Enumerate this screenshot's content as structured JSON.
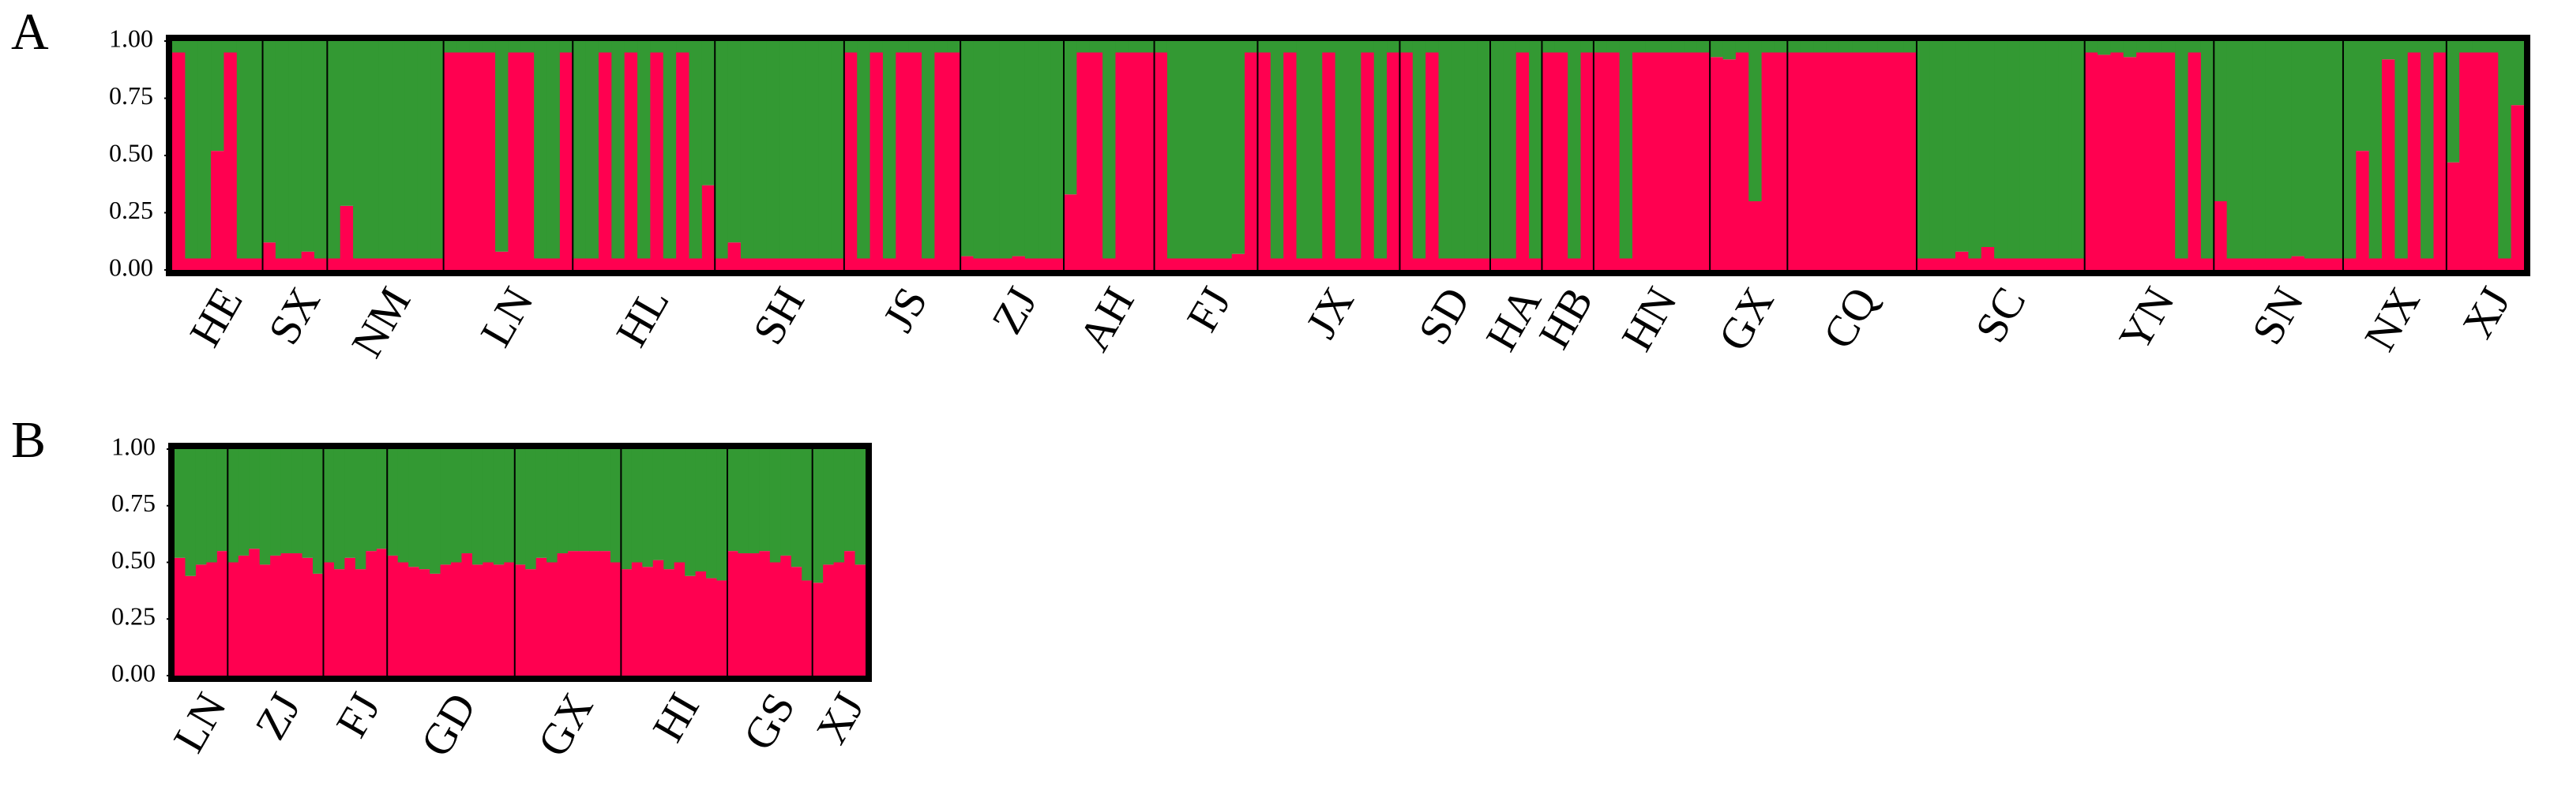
{
  "chart_data": [
    {
      "type": "bar",
      "stacked": true,
      "label": "A",
      "categories": [
        "HE",
        "SX",
        "NM",
        "LN",
        "HL",
        "SH",
        "JS",
        "ZJ",
        "AH",
        "FJ",
        "JX",
        "SD",
        "HA",
        "HB",
        "HN",
        "GX",
        "CQ",
        "SC",
        "YN",
        "SN",
        "NX",
        "XJ"
      ],
      "ylim": [
        0,
        1
      ],
      "yticks": [
        {
          "value": 0,
          "label": "0.00"
        },
        {
          "value": 0.25,
          "label": "0.25"
        },
        {
          "value": 0.5,
          "label": "0.50"
        },
        {
          "value": 0.75,
          "label": "0.75"
        },
        {
          "value": 1,
          "label": "1.00"
        }
      ],
      "series": [
        {
          "color": "#ff0050",
          "values": [
            [
              0.95,
              0.05,
              0.05,
              0.52,
              0.95,
              0.05,
              0.05
            ],
            [
              0.12,
              0.05,
              0.05,
              0.08,
              0.05
            ],
            [
              0.05,
              0.28,
              0.05,
              0.05,
              0.05,
              0.05,
              0.05,
              0.05,
              0.05
            ],
            [
              0.95,
              0.95,
              0.95,
              0.95,
              0.08,
              0.95,
              0.95,
              0.05,
              0.05,
              0.95
            ],
            [
              0.05,
              0.05,
              0.95,
              0.05,
              0.95,
              0.05,
              0.95,
              0.05,
              0.95,
              0.05,
              0.37
            ],
            [
              0.05,
              0.12,
              0.05,
              0.05,
              0.05,
              0.05,
              0.05,
              0.05,
              0.05,
              0.05
            ],
            [
              0.95,
              0.05,
              0.95,
              0.05,
              0.95,
              0.95,
              0.05,
              0.95,
              0.95
            ],
            [
              0.06,
              0.05,
              0.05,
              0.05,
              0.06,
              0.05,
              0.05,
              0.05
            ],
            [
              0.33,
              0.95,
              0.95,
              0.05,
              0.95,
              0.95,
              0.95
            ],
            [
              0.95,
              0.05,
              0.05,
              0.05,
              0.05,
              0.05,
              0.07,
              0.95
            ],
            [
              0.95,
              0.05,
              0.95,
              0.05,
              0.05,
              0.95,
              0.05,
              0.05,
              0.95,
              0.05,
              0.95
            ],
            [
              0.95,
              0.05,
              0.95,
              0.05,
              0.05,
              0.05,
              0.05
            ],
            [
              0.05,
              0.05,
              0.95,
              0.05
            ],
            [
              0.95,
              0.95,
              0.05,
              0.95
            ],
            [
              0.95,
              0.95,
              0.05,
              0.95,
              0.95,
              0.95,
              0.95,
              0.95,
              0.95
            ],
            [
              0.93,
              0.92,
              0.95,
              0.3,
              0.95,
              0.95
            ],
            [
              0.95,
              0.95,
              0.95,
              0.95,
              0.95,
              0.95,
              0.95,
              0.95,
              0.95,
              0.95
            ],
            [
              0.05,
              0.05,
              0.05,
              0.08,
              0.05,
              0.1,
              0.05,
              0.05,
              0.05,
              0.05,
              0.05,
              0.05,
              0.05
            ],
            [
              0.95,
              0.94,
              0.95,
              0.93,
              0.95,
              0.95,
              0.95,
              0.05,
              0.95,
              0.05
            ],
            [
              0.3,
              0.05,
              0.05,
              0.05,
              0.05,
              0.05,
              0.06,
              0.05,
              0.05,
              0.05
            ],
            [
              0.05,
              0.52,
              0.05,
              0.92,
              0.05,
              0.95,
              0.05,
              0.95
            ],
            [
              0.47,
              0.95,
              0.95,
              0.95,
              0.05,
              0.72
            ]
          ]
        },
        {
          "color": "#339933",
          "values": [
            [
              0.05,
              0.95,
              0.95,
              0.48,
              0.05,
              0.95,
              0.95
            ],
            [
              0.88,
              0.95,
              0.95,
              0.92,
              0.95
            ],
            [
              0.95,
              0.72,
              0.95,
              0.95,
              0.95,
              0.95,
              0.95,
              0.95,
              0.95
            ],
            [
              0.05,
              0.05,
              0.05,
              0.05,
              0.92,
              0.05,
              0.05,
              0.95,
              0.95,
              0.05
            ],
            [
              0.95,
              0.95,
              0.05,
              0.95,
              0.05,
              0.95,
              0.05,
              0.95,
              0.05,
              0.95,
              0.63
            ],
            [
              0.95,
              0.88,
              0.95,
              0.95,
              0.95,
              0.95,
              0.95,
              0.95,
              0.95,
              0.95
            ],
            [
              0.05,
              0.95,
              0.05,
              0.95,
              0.05,
              0.05,
              0.95,
              0.05,
              0.05
            ],
            [
              0.94,
              0.95,
              0.95,
              0.95,
              0.94,
              0.95,
              0.95,
              0.95
            ],
            [
              0.67,
              0.05,
              0.05,
              0.95,
              0.05,
              0.05,
              0.05
            ],
            [
              0.05,
              0.95,
              0.95,
              0.95,
              0.95,
              0.95,
              0.93,
              0.05
            ],
            [
              0.05,
              0.95,
              0.05,
              0.95,
              0.95,
              0.05,
              0.95,
              0.95,
              0.05,
              0.95,
              0.05
            ],
            [
              0.05,
              0.95,
              0.05,
              0.95,
              0.95,
              0.95,
              0.95
            ],
            [
              0.95,
              0.95,
              0.05,
              0.95
            ],
            [
              0.05,
              0.05,
              0.95,
              0.05
            ],
            [
              0.05,
              0.05,
              0.95,
              0.05,
              0.05,
              0.05,
              0.05,
              0.05,
              0.05
            ],
            [
              0.07,
              0.08,
              0.05,
              0.7,
              0.05,
              0.05
            ],
            [
              0.05,
              0.05,
              0.05,
              0.05,
              0.05,
              0.05,
              0.05,
              0.05,
              0.05,
              0.05
            ],
            [
              0.95,
              0.95,
              0.95,
              0.92,
              0.95,
              0.9,
              0.95,
              0.95,
              0.95,
              0.95,
              0.95,
              0.95,
              0.95
            ],
            [
              0.05,
              0.06,
              0.05,
              0.07,
              0.05,
              0.05,
              0.05,
              0.95,
              0.05,
              0.95
            ],
            [
              0.7,
              0.95,
              0.95,
              0.95,
              0.95,
              0.95,
              0.94,
              0.95,
              0.95,
              0.95
            ],
            [
              0.95,
              0.48,
              0.95,
              0.08,
              0.95,
              0.05,
              0.95,
              0.05
            ],
            [
              0.53,
              0.05,
              0.05,
              0.05,
              0.95,
              0.28
            ]
          ]
        }
      ]
    },
    {
      "type": "bar",
      "stacked": true,
      "label": "B",
      "categories": [
        "LN",
        "ZJ",
        "FJ",
        "GD",
        "GX",
        "HI",
        "GS",
        "XJ"
      ],
      "ylim": [
        0,
        1
      ],
      "yticks": [
        {
          "value": 0,
          "label": "0.00"
        },
        {
          "value": 0.25,
          "label": "0.25"
        },
        {
          "value": 0.5,
          "label": "0.50"
        },
        {
          "value": 0.75,
          "label": "0.75"
        },
        {
          "value": 1,
          "label": "1.00"
        }
      ],
      "series": [
        {
          "color": "#ff0050",
          "values": [
            [
              0.52,
              0.44,
              0.49,
              0.5,
              0.55
            ],
            [
              0.5,
              0.53,
              0.56,
              0.49,
              0.53,
              0.54,
              0.54,
              0.52,
              0.45
            ],
            [
              0.5,
              0.47,
              0.52,
              0.47,
              0.55,
              0.56
            ],
            [
              0.53,
              0.5,
              0.48,
              0.47,
              0.45,
              0.49,
              0.5,
              0.54,
              0.49,
              0.5,
              0.49,
              0.5
            ],
            [
              0.49,
              0.47,
              0.52,
              0.5,
              0.54,
              0.55,
              0.55,
              0.55,
              0.55,
              0.5
            ],
            [
              0.47,
              0.5,
              0.48,
              0.51,
              0.47,
              0.5,
              0.44,
              0.46,
              0.43,
              0.42
            ],
            [
              0.55,
              0.54,
              0.54,
              0.55,
              0.5,
              0.53,
              0.48,
              0.42
            ],
            [
              0.41,
              0.49,
              0.5,
              0.55,
              0.49
            ]
          ]
        },
        {
          "color": "#339933",
          "values": [
            [
              0.48,
              0.56,
              0.51,
              0.5,
              0.45
            ],
            [
              0.5,
              0.47,
              0.44,
              0.51,
              0.47,
              0.46,
              0.46,
              0.48,
              0.55
            ],
            [
              0.5,
              0.53,
              0.48,
              0.53,
              0.45,
              0.44
            ],
            [
              0.47,
              0.5,
              0.52,
              0.53,
              0.55,
              0.51,
              0.5,
              0.46,
              0.51,
              0.5,
              0.51,
              0.5
            ],
            [
              0.51,
              0.53,
              0.48,
              0.5,
              0.46,
              0.45,
              0.45,
              0.45,
              0.45,
              0.5
            ],
            [
              0.53,
              0.5,
              0.52,
              0.49,
              0.53,
              0.5,
              0.56,
              0.54,
              0.57,
              0.58
            ],
            [
              0.45,
              0.46,
              0.46,
              0.45,
              0.5,
              0.47,
              0.52,
              0.58
            ],
            [
              0.59,
              0.51,
              0.5,
              0.45,
              0.51
            ]
          ]
        }
      ]
    }
  ]
}
